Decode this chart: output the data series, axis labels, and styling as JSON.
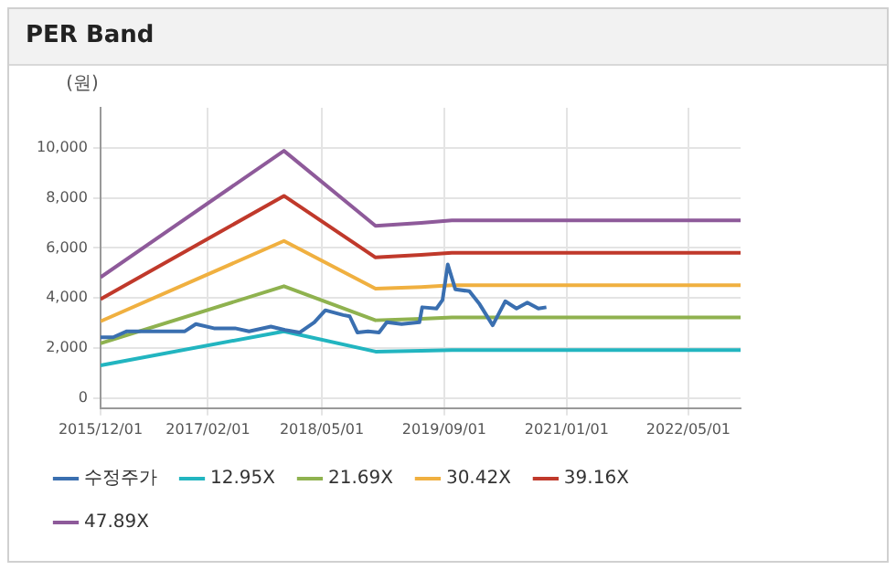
{
  "chart_data": {
    "type": "line",
    "title": "PER Band",
    "ylabel": "(원)",
    "xlim": [
      "2015-12-01",
      "2022-11-25"
    ],
    "xticks": [
      {
        "value": "2015-12-01",
        "label": "2015/12/01"
      },
      {
        "value": "2017-02-01",
        "label": "2017/02/01"
      },
      {
        "value": "2018-05-01",
        "label": "2018/05/01"
      },
      {
        "value": "2019-09-01",
        "label": "2019/09/01"
      },
      {
        "value": "2021-01-01",
        "label": "2021/01/01"
      },
      {
        "value": "2022-05-01",
        "label": "2022/05/01"
      }
    ],
    "ylim": [
      -400,
      11600
    ],
    "yticks": [
      0,
      {
        "value": 2000,
        "label": "2,000"
      },
      {
        "value": 4000,
        "label": "4,000"
      },
      {
        "value": 6000,
        "label": "6,000"
      },
      {
        "value": 8000,
        "label": "8,000"
      },
      {
        "value": 10000,
        "label": "10,000"
      }
    ],
    "grid": true,
    "legend": "bottom",
    "marker": "none",
    "line_style": "solid",
    "series": [
      {
        "name": "수정주가",
        "color": "#3a6fb0",
        "x": [
          "2015-12-01",
          "2016-01-20",
          "2016-03-15",
          "2016-11-01",
          "2016-12-15",
          "2017-02-25",
          "2017-05-20",
          "2017-07-15",
          "2017-10-10",
          "2017-12-05",
          "2018-02-01",
          "2018-04-01",
          "2018-05-15",
          "2018-07-25",
          "2018-08-20",
          "2018-09-20",
          "2018-11-01",
          "2018-12-15",
          "2019-01-15",
          "2019-03-15",
          "2019-05-25",
          "2019-06-05",
          "2019-08-01",
          "2019-08-25",
          "2019-09-15",
          "2019-10-15",
          "2019-12-10",
          "2020-01-20",
          "2020-03-12",
          "2020-05-01",
          "2020-06-15",
          "2020-07-28",
          "2020-09-10",
          "2020-10-12"
        ],
        "values": [
          2430,
          2430,
          2670,
          2670,
          2960,
          2790,
          2790,
          2670,
          2860,
          2720,
          2620,
          3030,
          3510,
          3320,
          3270,
          2620,
          2670,
          2620,
          3030,
          2960,
          3030,
          3630,
          3580,
          3920,
          5340,
          4350,
          4270,
          3750,
          2910,
          3870,
          3580,
          3820,
          3580,
          3630
        ]
      },
      {
        "name": "12.95X",
        "color": "#22b5c0",
        "x": [
          "2015-12-01",
          "2017-12-01",
          "2018-12-01",
          "2019-06-01",
          "2019-10-01",
          "2022-11-25"
        ],
        "values": [
          1310,
          2670,
          1860,
          1890,
          1920,
          1920
        ]
      },
      {
        "name": "21.69X",
        "color": "#8fb24f",
        "x": [
          "2015-12-01",
          "2017-12-01",
          "2018-12-01",
          "2019-06-01",
          "2019-10-01",
          "2022-11-25"
        ],
        "values": [
          2190,
          4470,
          3110,
          3170,
          3220,
          3220
        ]
      },
      {
        "name": "30.42X",
        "color": "#f0b040",
        "x": [
          "2015-12-01",
          "2017-12-01",
          "2018-12-01",
          "2019-06-01",
          "2019-10-01",
          "2022-11-25"
        ],
        "values": [
          3070,
          6280,
          4370,
          4440,
          4510,
          4510
        ]
      },
      {
        "name": "39.16X",
        "color": "#c0392b",
        "x": [
          "2015-12-01",
          "2017-12-01",
          "2018-12-01",
          "2019-06-01",
          "2019-10-01",
          "2022-11-25"
        ],
        "values": [
          3950,
          8080,
          5620,
          5720,
          5810,
          5810
        ]
      },
      {
        "name": "47.89X",
        "color": "#8e5a9a",
        "x": [
          "2015-12-01",
          "2017-12-01",
          "2018-12-01",
          "2019-06-01",
          "2019-10-01",
          "2022-11-25"
        ],
        "values": [
          4830,
          9880,
          6880,
          7000,
          7100,
          7100
        ]
      }
    ]
  }
}
